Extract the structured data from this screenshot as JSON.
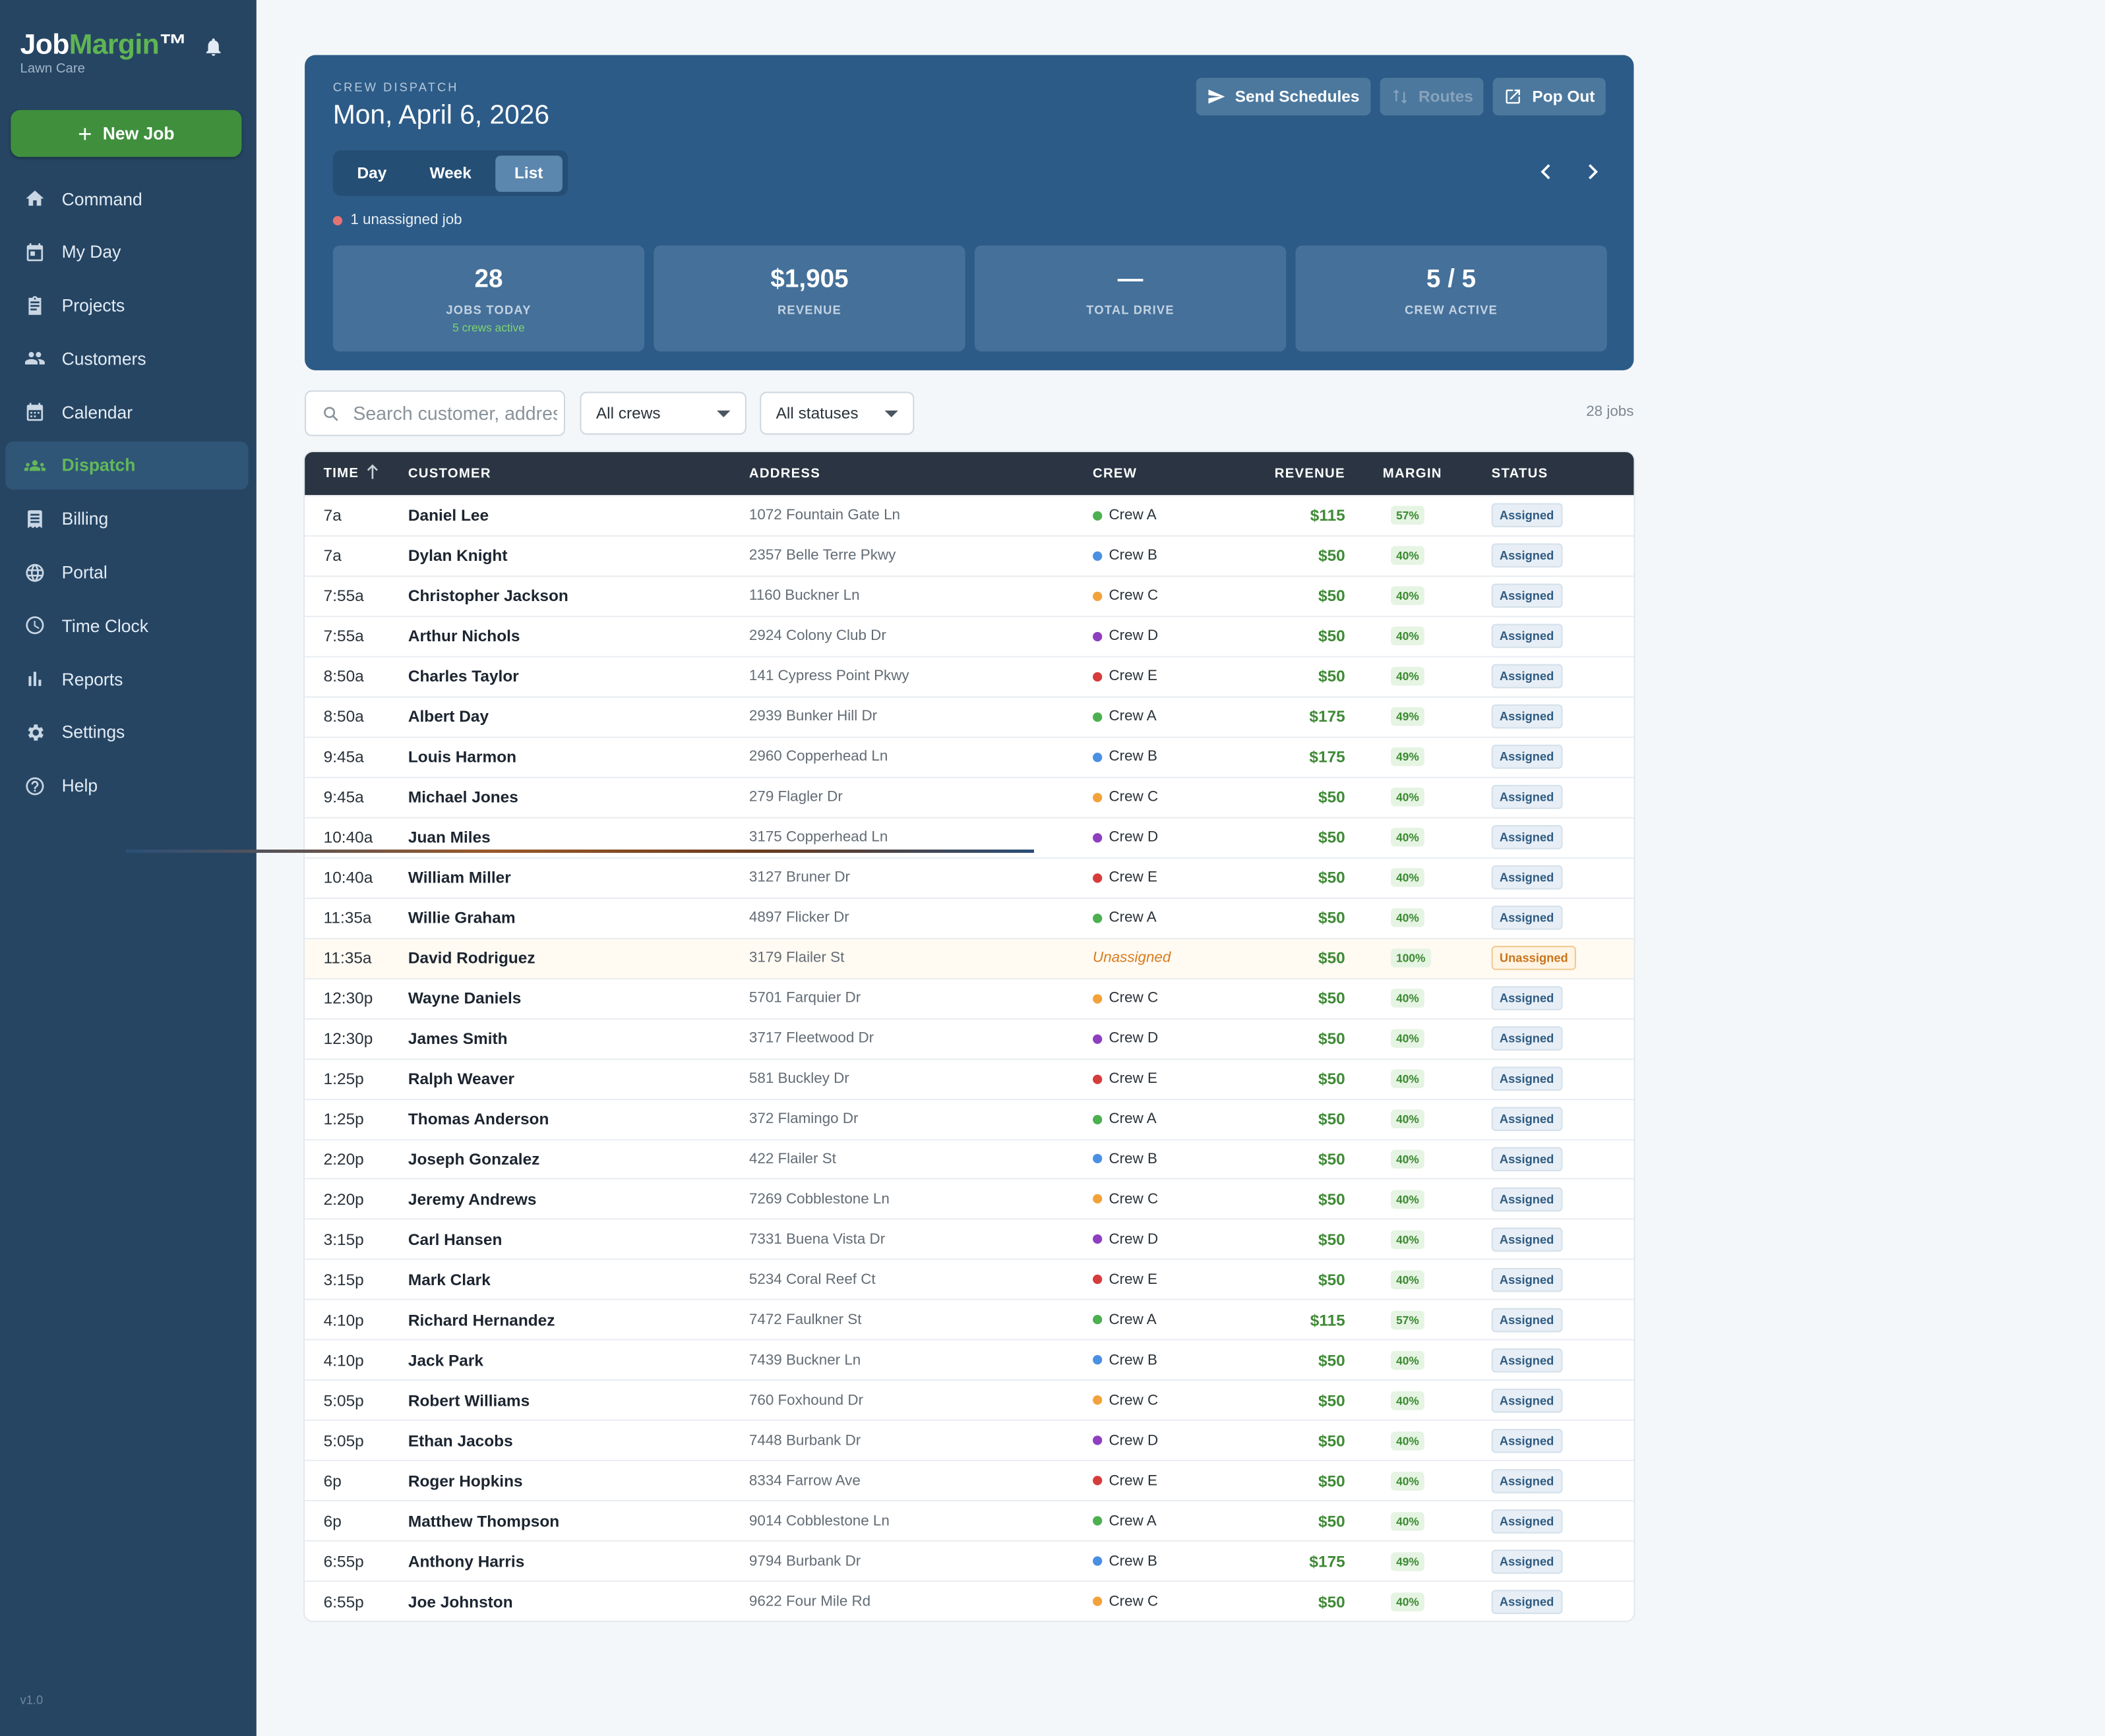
{
  "app": {
    "brand_prefix": "Job",
    "brand_accent": "Margin",
    "brand_suffix": "™",
    "subtitle": "Lawn Care",
    "new_job_label": "New Job",
    "version": "v1.0"
  },
  "nav": [
    {
      "label": "Command",
      "icon": "home-icon",
      "active": false
    },
    {
      "label": "My Day",
      "icon": "calendar-day-icon",
      "active": false
    },
    {
      "label": "Projects",
      "icon": "clipboard-icon",
      "active": false
    },
    {
      "label": "Customers",
      "icon": "people-icon",
      "active": false
    },
    {
      "label": "Calendar",
      "icon": "calendar-icon",
      "active": false
    },
    {
      "label": "Dispatch",
      "icon": "dispatch-icon",
      "active": true
    },
    {
      "label": "Billing",
      "icon": "receipt-icon",
      "active": false
    },
    {
      "label": "Portal",
      "icon": "globe-icon",
      "active": false
    },
    {
      "label": "Time Clock",
      "icon": "clock-icon",
      "active": false
    },
    {
      "label": "Reports",
      "icon": "bar-chart-icon",
      "active": false
    },
    {
      "label": "Settings",
      "icon": "gear-icon",
      "active": false
    },
    {
      "label": "Help",
      "icon": "help-icon",
      "active": false
    }
  ],
  "dispatch": {
    "kicker": "CREW DISPATCH",
    "date": "Mon, April 6, 2026",
    "buttons": {
      "send": "Send Schedules",
      "routes": "Routes",
      "popout": "Pop Out"
    },
    "views": [
      "Day",
      "Week",
      "List"
    ],
    "active_view": "List",
    "unassigned_note": "1 unassigned job",
    "stats": [
      {
        "value": "28",
        "label": "JOBS TODAY",
        "sub": "5 crews active"
      },
      {
        "value": "$1,905",
        "label": "REVENUE",
        "sub": ""
      },
      {
        "value": "—",
        "label": "TOTAL DRIVE",
        "sub": ""
      },
      {
        "value": "5 / 5",
        "label": "CREW ACTIVE",
        "sub": ""
      }
    ]
  },
  "filters": {
    "search_placeholder": "Search customer, address...",
    "crew_filter": "All crews",
    "status_filter": "All statuses",
    "count": "28 jobs"
  },
  "colors": {
    "crew_a": "#4caf50",
    "crew_b": "#4a90e2",
    "crew_c": "#f2a23a",
    "crew_d": "#8e3fbf",
    "crew_e": "#d63c3c"
  },
  "table": {
    "headers": {
      "time": "TIME",
      "customer": "CUSTOMER",
      "address": "ADDRESS",
      "crew": "CREW",
      "revenue": "REVENUE",
      "margin": "MARGIN",
      "status": "STATUS"
    },
    "rows": [
      {
        "time": "7a",
        "customer": "Daniel Lee",
        "address": "1072 Fountain Gate Ln",
        "crew": "Crew A",
        "revenue": "$115",
        "margin": "57%",
        "status": "Assigned"
      },
      {
        "time": "7a",
        "customer": "Dylan Knight",
        "address": "2357 Belle Terre Pkwy",
        "crew": "Crew B",
        "revenue": "$50",
        "margin": "40%",
        "status": "Assigned"
      },
      {
        "time": "7:55a",
        "customer": "Christopher Jackson",
        "address": "1160 Buckner Ln",
        "crew": "Crew C",
        "revenue": "$50",
        "margin": "40%",
        "status": "Assigned"
      },
      {
        "time": "7:55a",
        "customer": "Arthur Nichols",
        "address": "2924 Colony Club Dr",
        "crew": "Crew D",
        "revenue": "$50",
        "margin": "40%",
        "status": "Assigned"
      },
      {
        "time": "8:50a",
        "customer": "Charles Taylor",
        "address": "141 Cypress Point Pkwy",
        "crew": "Crew E",
        "revenue": "$50",
        "margin": "40%",
        "status": "Assigned"
      },
      {
        "time": "8:50a",
        "customer": "Albert Day",
        "address": "2939 Bunker Hill Dr",
        "crew": "Crew A",
        "revenue": "$175",
        "margin": "49%",
        "status": "Assigned"
      },
      {
        "time": "9:45a",
        "customer": "Louis Harmon",
        "address": "2960 Copperhead Ln",
        "crew": "Crew B",
        "revenue": "$175",
        "margin": "49%",
        "status": "Assigned"
      },
      {
        "time": "9:45a",
        "customer": "Michael Jones",
        "address": "279 Flagler Dr",
        "crew": "Crew C",
        "revenue": "$50",
        "margin": "40%",
        "status": "Assigned"
      },
      {
        "time": "10:40a",
        "customer": "Juan Miles",
        "address": "3175 Copperhead Ln",
        "crew": "Crew D",
        "revenue": "$50",
        "margin": "40%",
        "status": "Assigned"
      },
      {
        "time": "10:40a",
        "customer": "William Miller",
        "address": "3127 Bruner Dr",
        "crew": "Crew E",
        "revenue": "$50",
        "margin": "40%",
        "status": "Assigned"
      },
      {
        "time": "11:35a",
        "customer": "Willie Graham",
        "address": "4897 Flicker Dr",
        "crew": "Crew A",
        "revenue": "$50",
        "margin": "40%",
        "status": "Assigned"
      },
      {
        "time": "11:35a",
        "customer": "David Rodriguez",
        "address": "3179 Flailer St",
        "crew": "Unassigned",
        "revenue": "$50",
        "margin": "100%",
        "status": "Unassigned"
      },
      {
        "time": "12:30p",
        "customer": "Wayne Daniels",
        "address": "5701 Farquier Dr",
        "crew": "Crew C",
        "revenue": "$50",
        "margin": "40%",
        "status": "Assigned"
      },
      {
        "time": "12:30p",
        "customer": "James Smith",
        "address": "3717 Fleetwood Dr",
        "crew": "Crew D",
        "revenue": "$50",
        "margin": "40%",
        "status": "Assigned"
      },
      {
        "time": "1:25p",
        "customer": "Ralph Weaver",
        "address": "581 Buckley Dr",
        "crew": "Crew E",
        "revenue": "$50",
        "margin": "40%",
        "status": "Assigned"
      },
      {
        "time": "1:25p",
        "customer": "Thomas Anderson",
        "address": "372 Flamingo Dr",
        "crew": "Crew A",
        "revenue": "$50",
        "margin": "40%",
        "status": "Assigned"
      },
      {
        "time": "2:20p",
        "customer": "Joseph Gonzalez",
        "address": "422 Flailer St",
        "crew": "Crew B",
        "revenue": "$50",
        "margin": "40%",
        "status": "Assigned"
      },
      {
        "time": "2:20p",
        "customer": "Jeremy Andrews",
        "address": "7269 Cobblestone Ln",
        "crew": "Crew C",
        "revenue": "$50",
        "margin": "40%",
        "status": "Assigned"
      },
      {
        "time": "3:15p",
        "customer": "Carl Hansen",
        "address": "7331 Buena Vista Dr",
        "crew": "Crew D",
        "revenue": "$50",
        "margin": "40%",
        "status": "Assigned"
      },
      {
        "time": "3:15p",
        "customer": "Mark Clark",
        "address": "5234 Coral Reef Ct",
        "crew": "Crew E",
        "revenue": "$50",
        "margin": "40%",
        "status": "Assigned"
      },
      {
        "time": "4:10p",
        "customer": "Richard Hernandez",
        "address": "7472 Faulkner St",
        "crew": "Crew A",
        "revenue": "$115",
        "margin": "57%",
        "status": "Assigned"
      },
      {
        "time": "4:10p",
        "customer": "Jack Park",
        "address": "7439 Buckner Ln",
        "crew": "Crew B",
        "revenue": "$50",
        "margin": "40%",
        "status": "Assigned"
      },
      {
        "time": "5:05p",
        "customer": "Robert Williams",
        "address": "760 Foxhound Dr",
        "crew": "Crew C",
        "revenue": "$50",
        "margin": "40%",
        "status": "Assigned"
      },
      {
        "time": "5:05p",
        "customer": "Ethan Jacobs",
        "address": "7448 Burbank Dr",
        "crew": "Crew D",
        "revenue": "$50",
        "margin": "40%",
        "status": "Assigned"
      },
      {
        "time": "6p",
        "customer": "Roger Hopkins",
        "address": "8334 Farrow Ave",
        "crew": "Crew E",
        "revenue": "$50",
        "margin": "40%",
        "status": "Assigned"
      },
      {
        "time": "6p",
        "customer": "Matthew Thompson",
        "address": "9014 Cobblestone Ln",
        "crew": "Crew A",
        "revenue": "$50",
        "margin": "40%",
        "status": "Assigned"
      },
      {
        "time": "6:55p",
        "customer": "Anthony Harris",
        "address": "9794 Burbank Dr",
        "crew": "Crew B",
        "revenue": "$175",
        "margin": "49%",
        "status": "Assigned"
      },
      {
        "time": "6:55p",
        "customer": "Joe Johnston",
        "address": "9622 Four Mile Rd",
        "crew": "Crew C",
        "revenue": "$50",
        "margin": "40%",
        "status": "Assigned"
      }
    ]
  }
}
